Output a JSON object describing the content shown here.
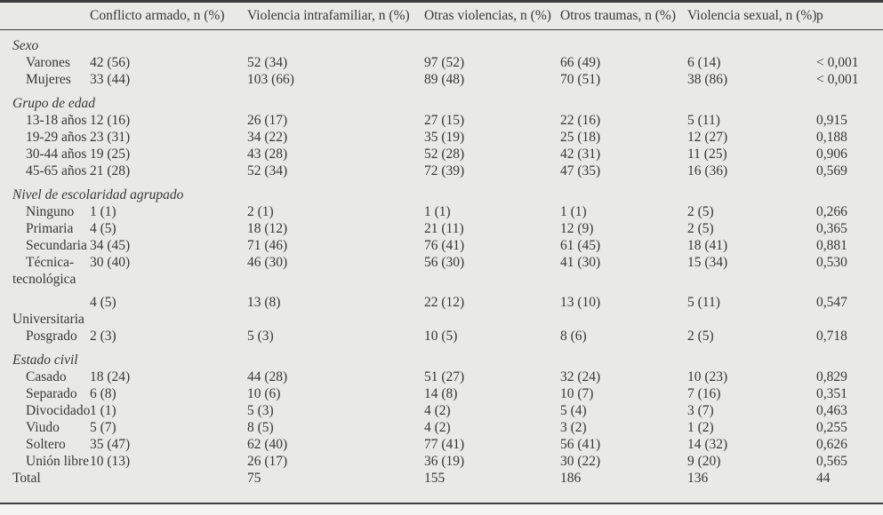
{
  "colors": {
    "table_background": "#e9e9e6",
    "page_background": "#f3f3f1",
    "rule": "#3e3e3c",
    "text": "#383836"
  },
  "table": {
    "columns": [
      {
        "label": ""
      },
      {
        "label": "Conflicto armado, n (%)"
      },
      {
        "label": "Violencia intrafamiliar, n (%)"
      },
      {
        "label": "Otras violencias, n (%)"
      },
      {
        "label": "Otros traumas, n (%)"
      },
      {
        "label": "Violencia sexual, n (%)"
      },
      {
        "label": "p"
      }
    ],
    "rows": [
      {
        "type": "group",
        "label": "Sexo"
      },
      {
        "type": "item",
        "label": "Varones",
        "values": [
          "42 (56)",
          "52 (34)",
          "97 (52)",
          "66 (49)",
          "6 (14)"
        ],
        "p": "< 0,001"
      },
      {
        "type": "item",
        "label": "Mujeres",
        "values": [
          "33 (44)",
          "103 (66)",
          "89 (48)",
          "70 (51)",
          "38 (86)"
        ],
        "p": "< 0,001"
      },
      {
        "type": "group",
        "label": "Grupo de edad"
      },
      {
        "type": "item",
        "label": "13-18 años",
        "values": [
          "12 (16)",
          "26 (17)",
          "27 (15)",
          "22 (16)",
          "5 (11)"
        ],
        "p": "0,915"
      },
      {
        "type": "item",
        "label": "19-29 años",
        "values": [
          "23 (31)",
          "34 (22)",
          "35 (19)",
          "25 (18)",
          "12 (27)"
        ],
        "p": "0,188"
      },
      {
        "type": "item",
        "label": "30-44 años",
        "values": [
          "19 (25)",
          "43 (28)",
          "52 (28)",
          "42 (31)",
          "11 (25)"
        ],
        "p": "0,906"
      },
      {
        "type": "item",
        "label": "45-65 años",
        "values": [
          "21 (28)",
          "52 (34)",
          "72 (39)",
          "47 (35)",
          "16 (36)"
        ],
        "p": "0,569"
      },
      {
        "type": "group",
        "label": "Nivel de escolaridad agrupado"
      },
      {
        "type": "item",
        "label": "Ninguno",
        "values": [
          "1 (1)",
          "2 (1)",
          "1 (1)",
          "1 (1)",
          "2 (5)"
        ],
        "p": "0,266"
      },
      {
        "type": "item",
        "label": "Primaria",
        "values": [
          "4 (5)",
          "18 (12)",
          "21 (11)",
          "12 (9)",
          "2 (5)"
        ],
        "p": "0,365"
      },
      {
        "type": "item",
        "label": "Secundaria",
        "values": [
          "34 (45)",
          "71 (46)",
          "76 (41)",
          "61 (45)",
          "18 (41)"
        ],
        "p": "0,881"
      },
      {
        "type": "item",
        "label": "Técnica-",
        "values": [
          "30 (40)",
          "46 (30)",
          "56 (30)",
          "41 (30)",
          "15 (34)"
        ],
        "p": "0,530"
      },
      {
        "type": "cont",
        "label": "tecnológica"
      },
      {
        "type": "item",
        "gap": true,
        "label": "",
        "values": [
          "4 (5)",
          "13 (8)",
          "22 (12)",
          "13 (10)",
          "5 (11)"
        ],
        "p": "0,547"
      },
      {
        "type": "cont",
        "label": "Universitaria"
      },
      {
        "type": "item",
        "label": "Posgrado",
        "values": [
          "2 (3)",
          "5 (3)",
          "10 (5)",
          "8 (6)",
          "2 (5)"
        ],
        "p": "0,718"
      },
      {
        "type": "group",
        "label": "Estado civil"
      },
      {
        "type": "item",
        "label": "Casado",
        "values": [
          "18 (24)",
          "44 (28)",
          "51 (27)",
          "32 (24)",
          "10 (23)"
        ],
        "p": "0,829"
      },
      {
        "type": "item",
        "label": "Separado",
        "values": [
          "6 (8)",
          "10 (6)",
          "14 (8)",
          "10 (7)",
          "7 (16)"
        ],
        "p": "0,351"
      },
      {
        "type": "item",
        "label": "Divocidado",
        "values": [
          "1 (1)",
          "5 (3)",
          "4 (2)",
          "5 (4)",
          "3 (7)"
        ],
        "p": "0,463"
      },
      {
        "type": "item",
        "label": "Viudo",
        "values": [
          "5 (7)",
          "8 (5)",
          "4 (2)",
          "3 (2)",
          "1 (2)"
        ],
        "p": "0,255"
      },
      {
        "type": "item",
        "label": "Soltero",
        "values": [
          "35 (47)",
          "62 (40)",
          "77 (41)",
          "56 (41)",
          "14 (32)"
        ],
        "p": "0,626"
      },
      {
        "type": "item",
        "label": "Unión libre",
        "values": [
          "10 (13)",
          "26 (17)",
          "36 (19)",
          "30 (22)",
          "9 (20)"
        ],
        "p": "0,565"
      },
      {
        "type": "total",
        "label": "Total",
        "values": [
          "",
          "75",
          "155",
          "186",
          "136"
        ],
        "p": "44"
      }
    ]
  }
}
